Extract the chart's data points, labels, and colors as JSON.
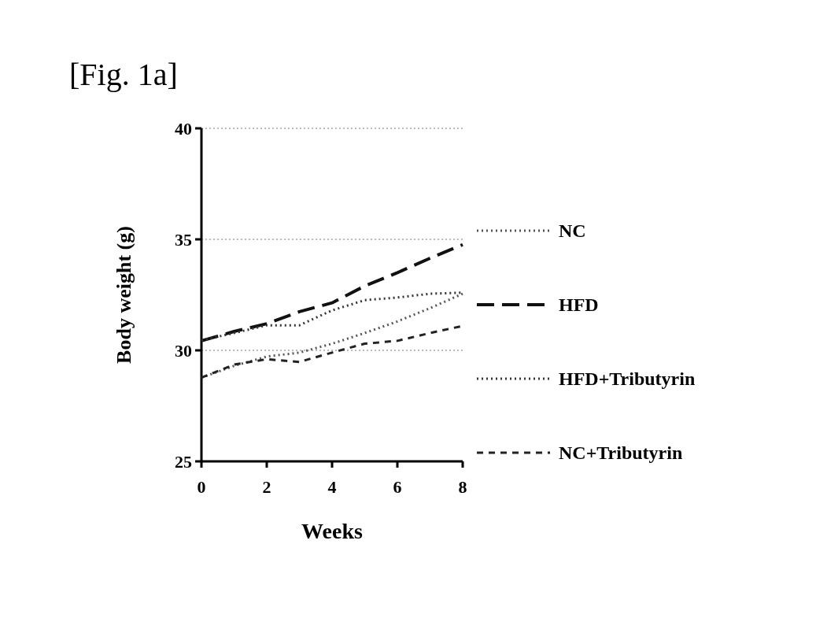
{
  "chart_data": {
    "type": "line",
    "title": "[Fig. 1a]",
    "xlabel": "Weeks",
    "ylabel": "Body weight (g)",
    "x": [
      0,
      1,
      2,
      3,
      4,
      5,
      6,
      7,
      8
    ],
    "xlim": [
      0,
      8
    ],
    "xticks": [
      0,
      2,
      4,
      6,
      8
    ],
    "ylim": [
      25,
      40
    ],
    "yticks": [
      25,
      30,
      35,
      40
    ],
    "grid": "y",
    "legend": "right",
    "series": [
      {
        "name": "NC",
        "color": "#555555",
        "line_style": "dotted",
        "values": [
          28.77,
          29.3,
          29.72,
          29.9,
          30.3,
          30.78,
          31.3,
          31.9,
          32.55
        ]
      },
      {
        "name": "HFD",
        "color": "#111111",
        "line_style": "dashed",
        "values": [
          30.43,
          30.85,
          31.2,
          31.74,
          32.14,
          32.9,
          33.5,
          34.15,
          34.76
        ]
      },
      {
        "name": "HFD+Tributyrin",
        "color": "#333333",
        "line_style": "dotted",
        "values": [
          30.45,
          30.78,
          31.13,
          31.13,
          31.8,
          32.26,
          32.38,
          32.55,
          32.6
        ]
      },
      {
        "name": "NC+Tributyrin",
        "color": "#222222",
        "line_style": "dashed",
        "values": [
          28.77,
          29.36,
          29.6,
          29.48,
          29.9,
          30.3,
          30.43,
          30.78,
          31.1
        ]
      }
    ]
  }
}
